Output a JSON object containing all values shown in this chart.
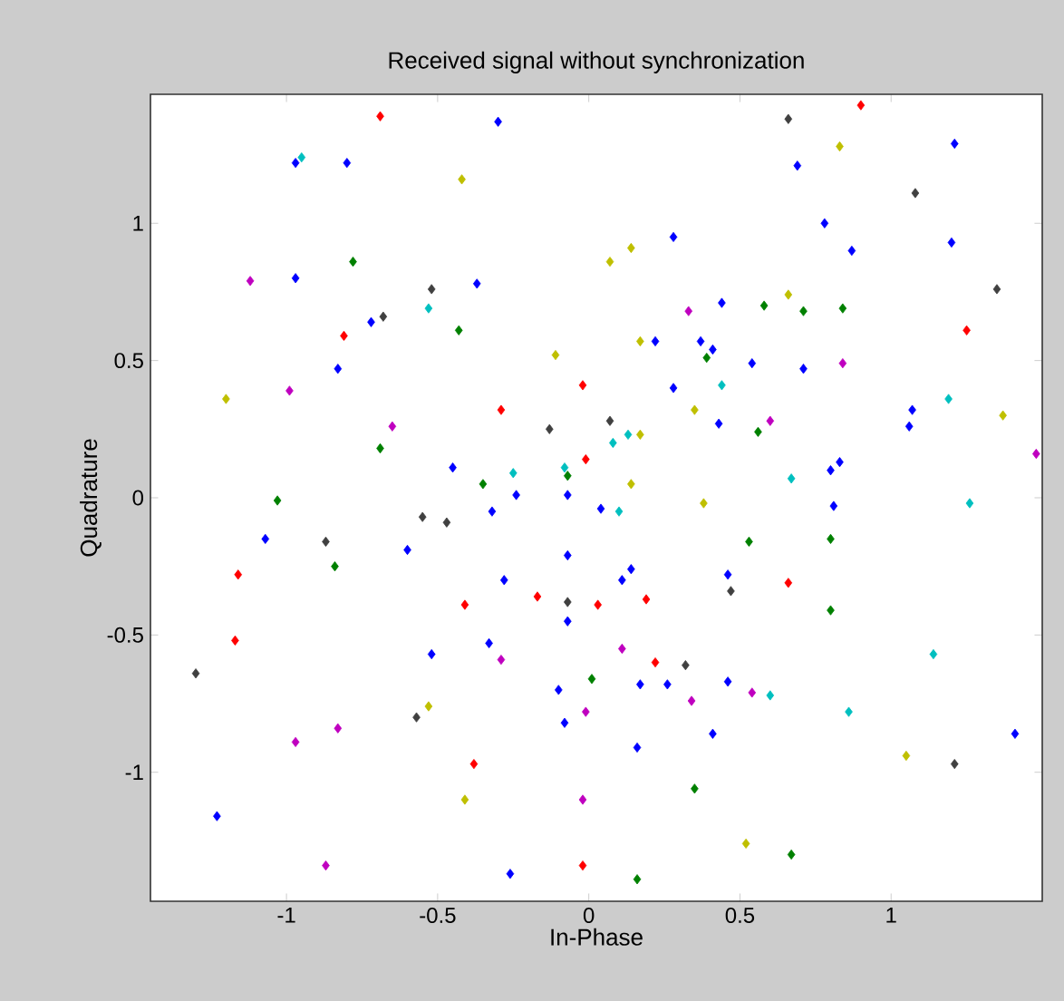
{
  "chart_data": {
    "type": "scatter",
    "title": "Received signal without synchronization",
    "xlabel": "In-Phase",
    "ylabel": "Quadrature",
    "xlim": [
      -1.45,
      1.5
    ],
    "ylim": [
      -1.47,
      1.47
    ],
    "xticks": [
      -1,
      -0.5,
      0,
      0.5,
      1
    ],
    "yticks": [
      -1,
      -0.5,
      0,
      0.5,
      1
    ],
    "marker": "diamond",
    "series": [
      {
        "color": "#ff0000",
        "x": [
          -0.69,
          -0.81,
          -0.02,
          -0.29,
          -0.01,
          0.9,
          1.25,
          -1.16,
          -1.17,
          -0.41,
          -0.17,
          0.03,
          0.19,
          0.22,
          -0.38,
          -0.02,
          0.66
        ],
        "values": [
          1.39,
          0.59,
          0.41,
          0.32,
          0.14,
          1.43,
          0.61,
          -0.28,
          -0.52,
          -0.39,
          -0.36,
          -0.39,
          -0.37,
          -0.6,
          -0.97,
          -1.34,
          -0.31
        ]
      },
      {
        "color": "#0000ff",
        "x": [
          -0.97,
          -0.8,
          -0.97,
          -0.72,
          -0.83,
          -0.45,
          -0.3,
          0.28,
          -0.37,
          0.44,
          0.22,
          0.37,
          0.41,
          0.54,
          0.28,
          0.43,
          -0.24,
          -0.07,
          1.21,
          0.69,
          0.78,
          0.87,
          1.2,
          0.71,
          1.07,
          1.06,
          0.83,
          0.8,
          0.81,
          -1.07,
          -0.6,
          -0.52,
          -1.23,
          -0.32,
          0.04,
          -0.07,
          0.14,
          0.11,
          -0.28,
          0.46,
          -0.07,
          -0.33,
          -0.1,
          0.17,
          0.26,
          0.46,
          -0.08,
          0.41,
          0.16,
          -0.26,
          1.41
        ],
        "values": [
          1.22,
          1.22,
          0.8,
          0.64,
          0.47,
          0.11,
          1.37,
          0.95,
          0.78,
          0.71,
          0.57,
          0.57,
          0.54,
          0.49,
          0.4,
          0.27,
          0.01,
          0.01,
          1.29,
          1.21,
          1.0,
          0.9,
          0.93,
          0.47,
          0.32,
          0.26,
          0.13,
          0.1,
          -0.03,
          -0.15,
          -0.19,
          -0.57,
          -1.16,
          -0.05,
          -0.04,
          -0.21,
          -0.26,
          -0.3,
          -0.3,
          -0.28,
          -0.45,
          -0.53,
          -0.7,
          -0.68,
          -0.68,
          -0.67,
          -0.82,
          -0.86,
          -0.91,
          -1.37,
          -0.86
        ]
      },
      {
        "color": "#008000",
        "x": [
          -0.78,
          -0.43,
          -0.69,
          -1.03,
          0.39,
          -0.07,
          -0.35,
          0.58,
          0.71,
          0.84,
          0.56,
          -0.84,
          0.53,
          0.8,
          0.8,
          0.01,
          0.35,
          0.16,
          0.67
        ],
        "values": [
          0.86,
          0.61,
          0.18,
          -0.01,
          0.51,
          0.08,
          0.05,
          0.7,
          0.68,
          0.69,
          0.24,
          -0.25,
          -0.16,
          -0.15,
          -0.41,
          -0.66,
          -1.06,
          -1.39,
          -1.3
        ]
      },
      {
        "color": "#00bfbf",
        "x": [
          -0.95,
          -0.53,
          0.44,
          0.13,
          0.08,
          -0.25,
          -0.08,
          1.19,
          0.67,
          1.26,
          0.1,
          1.14,
          0.6,
          0.86
        ],
        "values": [
          1.24,
          0.69,
          0.41,
          0.23,
          0.2,
          0.09,
          0.11,
          0.36,
          0.07,
          -0.02,
          -0.05,
          -0.57,
          -0.72,
          -0.78
        ]
      },
      {
        "color": "#bf00bf",
        "x": [
          -1.12,
          -0.99,
          -0.65,
          0.33,
          0.84,
          0.6,
          1.48,
          -0.83,
          -0.97,
          -0.87,
          -0.29,
          0.11,
          0.34,
          0.54,
          -0.01,
          -0.02
        ],
        "values": [
          0.79,
          0.39,
          0.26,
          0.68,
          0.49,
          0.28,
          0.16,
          -0.84,
          -0.89,
          -1.34,
          -0.59,
          -0.55,
          -0.74,
          -0.71,
          -0.78,
          -1.1
        ]
      },
      {
        "color": "#bfbf00",
        "x": [
          -0.42,
          -1.2,
          0.14,
          0.07,
          0.17,
          -0.11,
          0.35,
          0.17,
          0.14,
          0.38,
          0.83,
          0.66,
          1.37,
          -0.53,
          -0.41,
          0.52,
          1.05
        ],
        "values": [
          1.16,
          0.36,
          0.91,
          0.86,
          0.57,
          0.52,
          0.32,
          0.23,
          0.05,
          -0.02,
          1.28,
          0.74,
          0.3,
          -0.76,
          -1.1,
          -1.26,
          -0.94
        ]
      },
      {
        "color": "#404040",
        "x": [
          -0.52,
          -0.68,
          -0.13,
          0.07,
          0.66,
          1.08,
          1.35,
          -0.87,
          -0.55,
          -0.47,
          -1.3,
          -0.57,
          0.47,
          -0.07,
          0.32,
          1.21
        ],
        "values": [
          0.76,
          0.66,
          0.25,
          0.28,
          1.38,
          1.11,
          0.76,
          -0.16,
          -0.07,
          -0.09,
          -0.64,
          -0.8,
          -0.34,
          -0.38,
          -0.61,
          -0.97
        ]
      }
    ]
  }
}
